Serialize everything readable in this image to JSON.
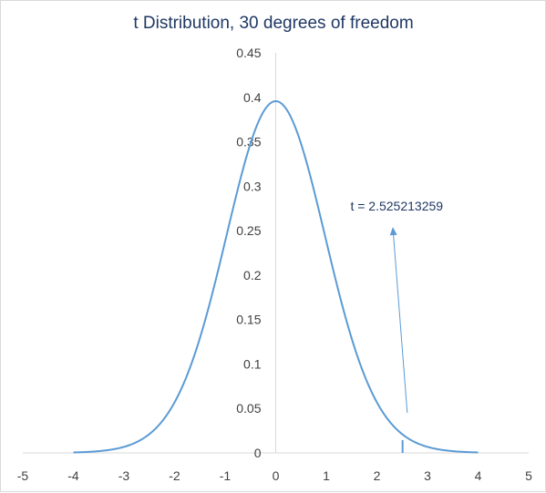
{
  "chart_data": {
    "type": "line",
    "title": "t Distribution, 30 degrees of freedom",
    "xlabel": "",
    "ylabel": "",
    "xlim": [
      -5,
      5
    ],
    "ylim": [
      0,
      0.45
    ],
    "x_ticks": [
      "-5",
      "-4",
      "-3",
      "-2",
      "-1",
      "0",
      "1",
      "2",
      "3",
      "4",
      "5"
    ],
    "y_ticks": [
      "0",
      "0.05",
      "0.1",
      "0.15",
      "0.2",
      "0.25",
      "0.3",
      "0.35",
      "0.4",
      "0.45"
    ],
    "grid": false,
    "legend": "none",
    "series": [
      {
        "degrees_of_freedom": 30,
        "x_range": [
          -4,
          4
        ],
        "color": "#5b9bd5"
      }
    ],
    "marker": {
      "x": 2.525213259,
      "color": "#5b9bd5"
    },
    "annotation": {
      "text": "t = 2.525213259",
      "arrow_from": [
        2.6,
        0.045
      ],
      "arrow_to": [
        2.32,
        0.25
      ],
      "color": "#5b9bd5"
    },
    "axis_color": "#d9d9d9"
  }
}
